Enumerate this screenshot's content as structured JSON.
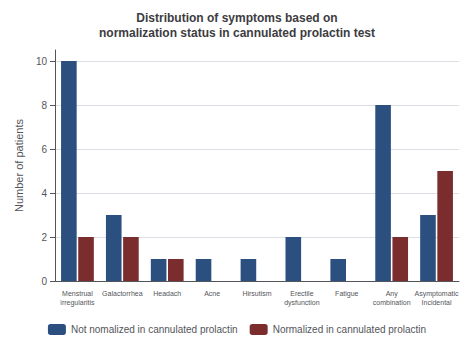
{
  "chart_data": {
    "type": "bar",
    "title": "Distribution of symptoms based on\nnormalization status in cannulated prolactin test",
    "ylabel": "Number of patients",
    "categories": [
      "Menstrual\nirregularitis",
      "Galactorrhea",
      "Headach",
      "Acne",
      "Hirsutism",
      "Erectile\ndysfunction",
      "Fatigue",
      "Any\ncombination",
      "Asymptomatic\nIncidental"
    ],
    "series": [
      {
        "name": "Not nomalized in cannulated prolactin",
        "color": "#2b4f7e",
        "values": [
          10,
          3,
          1,
          1,
          1,
          2,
          1,
          8,
          3
        ]
      },
      {
        "name": "Normalized in cannulated prolactin",
        "color": "#7b2c2c",
        "values": [
          2,
          2,
          1,
          0,
          0,
          0,
          0,
          2,
          5
        ]
      }
    ],
    "ylim": [
      0,
      10.5
    ],
    "yticks": [
      0,
      2,
      4,
      6,
      8,
      10
    ],
    "grid": true,
    "legend": "bottom"
  }
}
